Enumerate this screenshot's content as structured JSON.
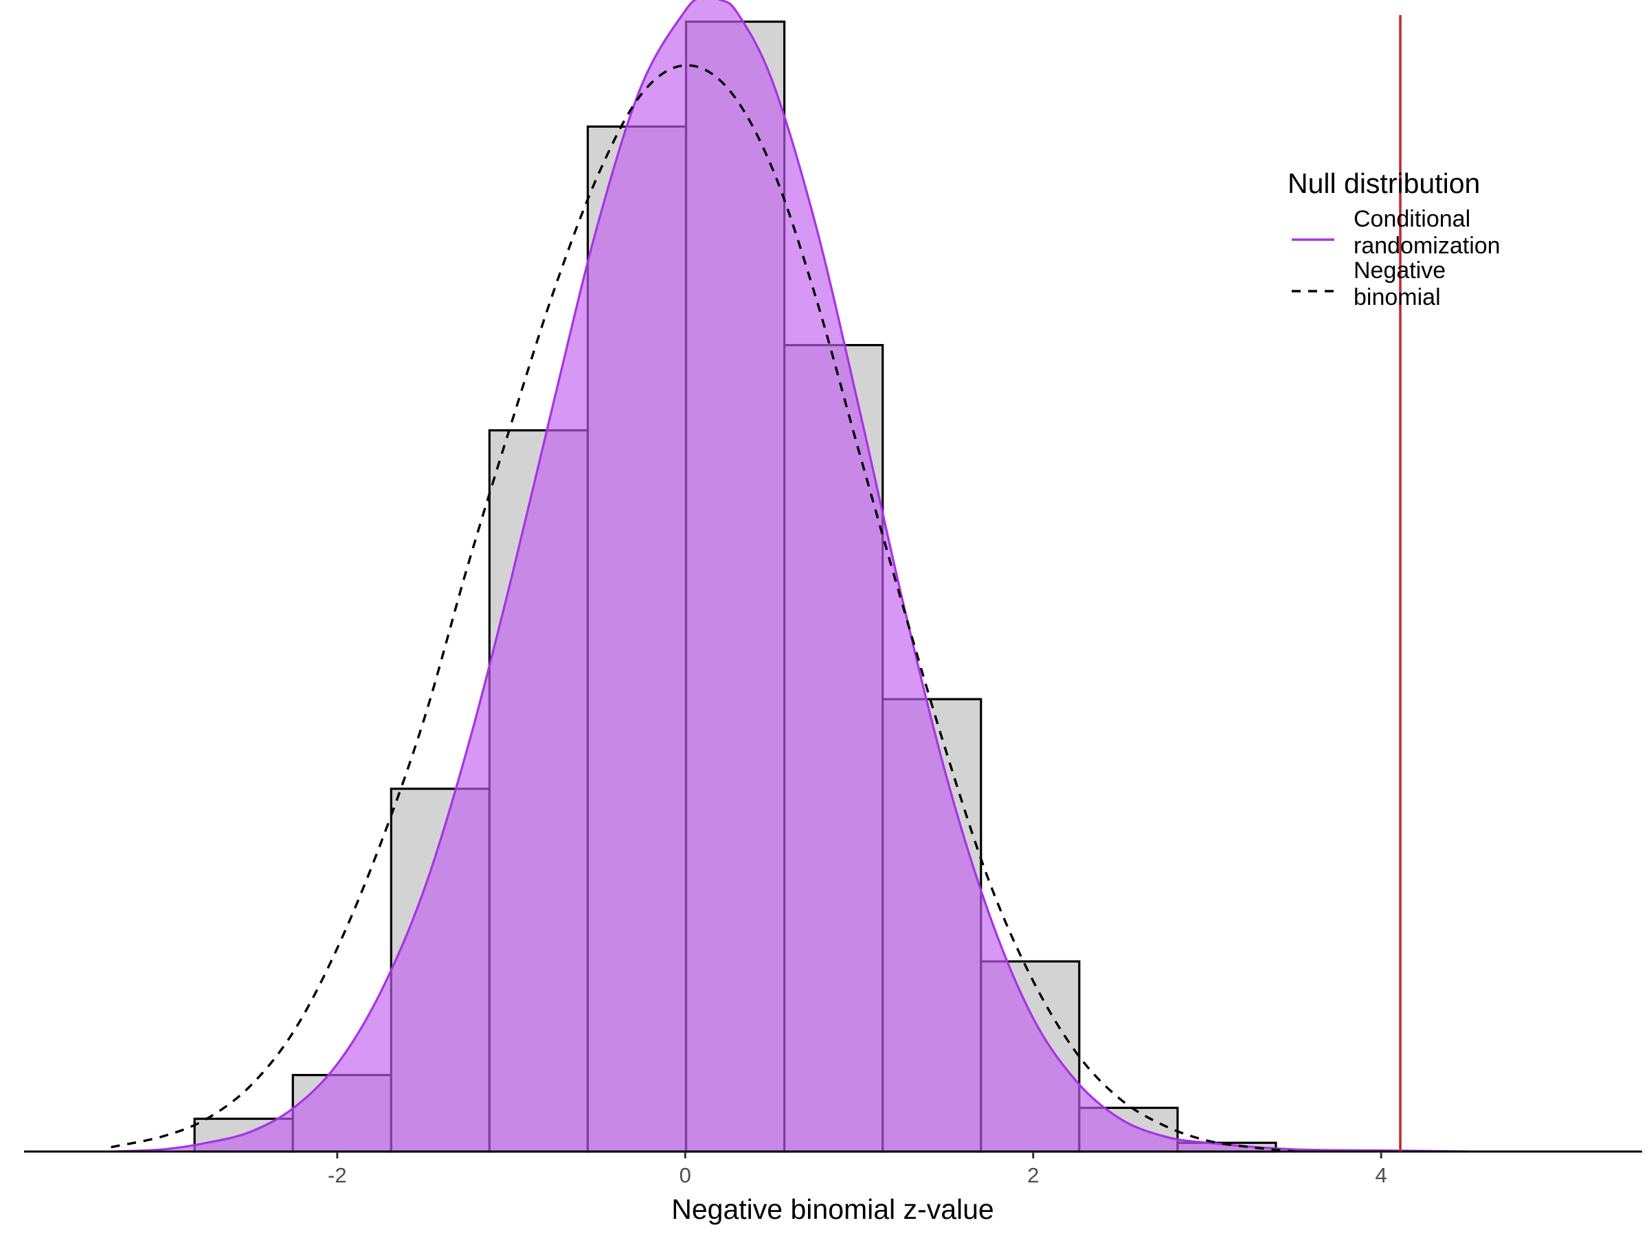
{
  "chart_data": {
    "type": "histogram",
    "xlabel": "Negative binomial z-value",
    "ylabel": "",
    "xlim": [
      -3.8,
      5.5
    ],
    "ylim": [
      0,
      0.52
    ],
    "x_ticks": [
      -2,
      0,
      2,
      4
    ],
    "x_tick_labels": [
      "-2",
      "0",
      "2",
      "4"
    ],
    "grid": false,
    "histogram": {
      "bin_edges": [
        -2.82,
        -2.255,
        -1.69,
        -1.125,
        -0.56,
        0.005,
        0.57,
        1.135,
        1.7,
        2.265,
        2.83,
        3.395
      ],
      "density": [
        0.015,
        0.035,
        0.166,
        0.33,
        0.469,
        0.517,
        0.369,
        0.207,
        0.087,
        0.02,
        0.004
      ],
      "fill": "#d3d3d3",
      "stroke": "#000000"
    },
    "series": [
      {
        "name": "Conditional randomization",
        "type": "density",
        "x": [
          -3.3,
          -3.0,
          -2.75,
          -2.5,
          -2.25,
          -2.0,
          -1.75,
          -1.5,
          -1.25,
          -1.0,
          -0.75,
          -0.5,
          -0.25,
          0.0,
          0.1,
          0.2,
          0.3,
          0.5,
          0.75,
          1.0,
          1.25,
          1.5,
          1.75,
          2.0,
          2.25,
          2.5,
          2.75,
          3.0,
          3.5,
          4.0,
          4.5
        ],
        "y": [
          0.0,
          0.001,
          0.004,
          0.009,
          0.02,
          0.04,
          0.073,
          0.12,
          0.185,
          0.262,
          0.345,
          0.425,
          0.488,
          0.522,
          0.528,
          0.527,
          0.521,
          0.49,
          0.424,
          0.34,
          0.252,
          0.172,
          0.108,
          0.061,
          0.032,
          0.015,
          0.007,
          0.004,
          0.001,
          0.0005,
          0.0
        ],
        "color": "#a733e4",
        "fill": "#c060f0",
        "fill_opacity": 0.65
      },
      {
        "name": "Negative binomial",
        "type": "line",
        "linestyle": "dashed",
        "x": [
          -3.3,
          -3.0,
          -2.75,
          -2.5,
          -2.25,
          -2.0,
          -1.75,
          -1.5,
          -1.25,
          -1.0,
          -0.75,
          -0.5,
          -0.25,
          0.0,
          0.25,
          0.5,
          0.75,
          1.0,
          1.25,
          1.5,
          1.75,
          2.0,
          2.25,
          2.5,
          2.75,
          3.0,
          3.25,
          3.5
        ],
        "y": [
          0.002,
          0.007,
          0.015,
          0.03,
          0.055,
          0.093,
          0.141,
          0.198,
          0.268,
          0.333,
          0.395,
          0.447,
          0.484,
          0.497,
          0.486,
          0.45,
          0.391,
          0.32,
          0.25,
          0.183,
          0.123,
          0.078,
          0.045,
          0.024,
          0.012,
          0.005,
          0.002,
          0.0
        ],
        "color": "#000000"
      }
    ],
    "vline": {
      "x": 4.11,
      "color": "#c0282d"
    },
    "legend": {
      "title": "Null distribution",
      "position": "top-right",
      "entries": [
        {
          "label_lines": [
            "Conditional",
            "randomization"
          ],
          "style": "solid",
          "color": "#a733e4"
        },
        {
          "label_lines": [
            "Negative",
            "binomial"
          ],
          "style": "dashed",
          "color": "#000000"
        }
      ]
    }
  }
}
